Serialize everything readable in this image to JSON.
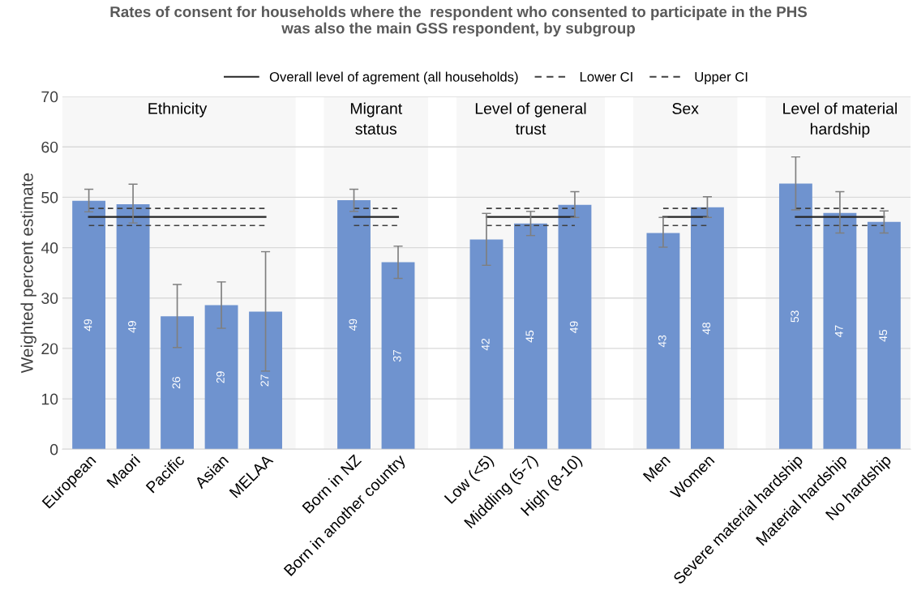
{
  "chart_data": {
    "type": "bar",
    "title": "Rates of consent for households where the  respondent who consented to participate in the PHS\nwas also the main GSS respondent, by subgroup",
    "ylabel": "Weighted percent estimate",
    "categories": [
      "European",
      "Maori",
      "Pacific",
      "Asian",
      "MELAA",
      null,
      "Born in NZ",
      "Born in another country",
      null,
      "Low (<5)",
      "Middling (5-7)",
      "High (8-10)",
      null,
      "Men",
      "Women",
      null,
      "Severe material hardship",
      "Material hardship",
      "No hardship"
    ],
    "series": [
      {
        "color": "#6f93cf",
        "values": [
          49.3,
          48.6,
          26.4,
          28.6,
          27.3,
          null,
          49.4,
          37.1,
          null,
          41.6,
          44.8,
          48.5,
          null,
          42.9,
          48.0,
          null,
          52.7,
          46.9,
          45.1
        ],
        "errors": [
          [
            47.1,
            51.6
          ],
          [
            44.9,
            52.6
          ],
          [
            20.2,
            32.7
          ],
          [
            24.0,
            33.2
          ],
          [
            15.5,
            39.2
          ],
          null,
          [
            47.2,
            51.6
          ],
          [
            33.9,
            40.3
          ],
          null,
          [
            36.5,
            46.8
          ],
          [
            42.4,
            47.2
          ],
          [
            46.0,
            51.1
          ],
          null,
          [
            40.1,
            46.0
          ],
          [
            46.0,
            50.1
          ],
          null,
          [
            47.5,
            58.0
          ],
          [
            42.9,
            51.1
          ],
          [
            42.9,
            47.3
          ]
        ],
        "value_labels": [
          "49",
          "49",
          "26",
          "29",
          "27",
          null,
          "49",
          "37",
          null,
          "42",
          "45",
          "49",
          null,
          "43",
          "48",
          null,
          "53",
          "47",
          "45"
        ]
      },
      {
        "type": "line",
        "name": "Overall level of agrement (all households)",
        "color": "#262626",
        "line_style": "solid",
        "values": [
          46.1,
          46.1,
          46.1,
          46.1,
          46.1,
          null,
          46.1,
          46.1,
          null,
          46.1,
          46.1,
          46.1,
          null,
          46.1,
          46.1,
          null,
          46.1,
          46.1,
          46.1
        ]
      },
      {
        "type": "line",
        "name": "Lower CI",
        "color": "#404040",
        "line_style": "dashed",
        "values": [
          44.4,
          44.4,
          44.4,
          44.4,
          44.4,
          null,
          44.4,
          44.4,
          null,
          44.4,
          44.4,
          44.4,
          null,
          44.4,
          44.4,
          null,
          44.4,
          44.4,
          44.4
        ]
      },
      {
        "type": "line",
        "name": "Upper CI",
        "color": "#404040",
        "line_style": "dashed",
        "values": [
          47.8,
          47.8,
          47.8,
          47.8,
          47.8,
          null,
          47.8,
          47.8,
          null,
          47.8,
          47.8,
          47.8,
          null,
          47.8,
          47.8,
          null,
          47.8,
          47.8,
          47.8
        ]
      }
    ],
    "annotations": [
      "Ethnicity",
      "Migrant\nstatus",
      "Level of general\ntrust",
      "Sex",
      "Level of material\nhardship"
    ],
    "ylim": [
      0,
      70
    ],
    "yticks": [
      0,
      10,
      20,
      30,
      40,
      50,
      60,
      70
    ],
    "grid": "y",
    "legend": "top"
  }
}
